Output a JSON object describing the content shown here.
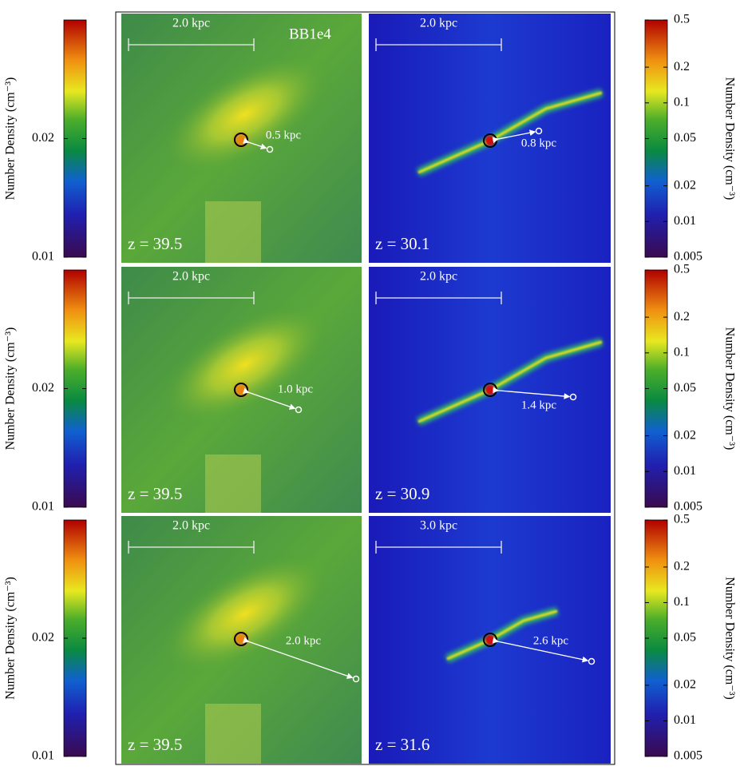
{
  "colorbars": {
    "left": {
      "label": "Number Density (cm⁻³)",
      "ticks": [
        0.02,
        0.01
      ],
      "lim": [
        0.01,
        0.03
      ],
      "log": false
    },
    "right": {
      "label": "Number Density (cm⁻³)",
      "ticks": [
        0.5,
        0.2,
        0.1,
        0.05,
        0.02,
        0.01,
        0.005
      ],
      "lim": [
        0.005,
        0.5
      ],
      "log": true
    }
  },
  "panels": [
    {
      "scale": "2.0 kpc",
      "redshift": "z = 39.5",
      "distance": "0.5 kpc",
      "name": "BB1e4"
    },
    {
      "scale": "2.0 kpc",
      "redshift": "z = 30.1",
      "distance": "0.8 kpc"
    },
    {
      "scale": "2.0 kpc",
      "redshift": "z = 39.5",
      "distance": "1.0 kpc"
    },
    {
      "scale": "2.0 kpc",
      "redshift": "z = 30.9",
      "distance": "1.4 kpc"
    },
    {
      "scale": "2.0 kpc",
      "redshift": "z = 39.5",
      "distance": "2.0 kpc"
    },
    {
      "scale": "3.0 kpc",
      "redshift": "z = 31.6",
      "distance": "2.6 kpc"
    }
  ]
}
